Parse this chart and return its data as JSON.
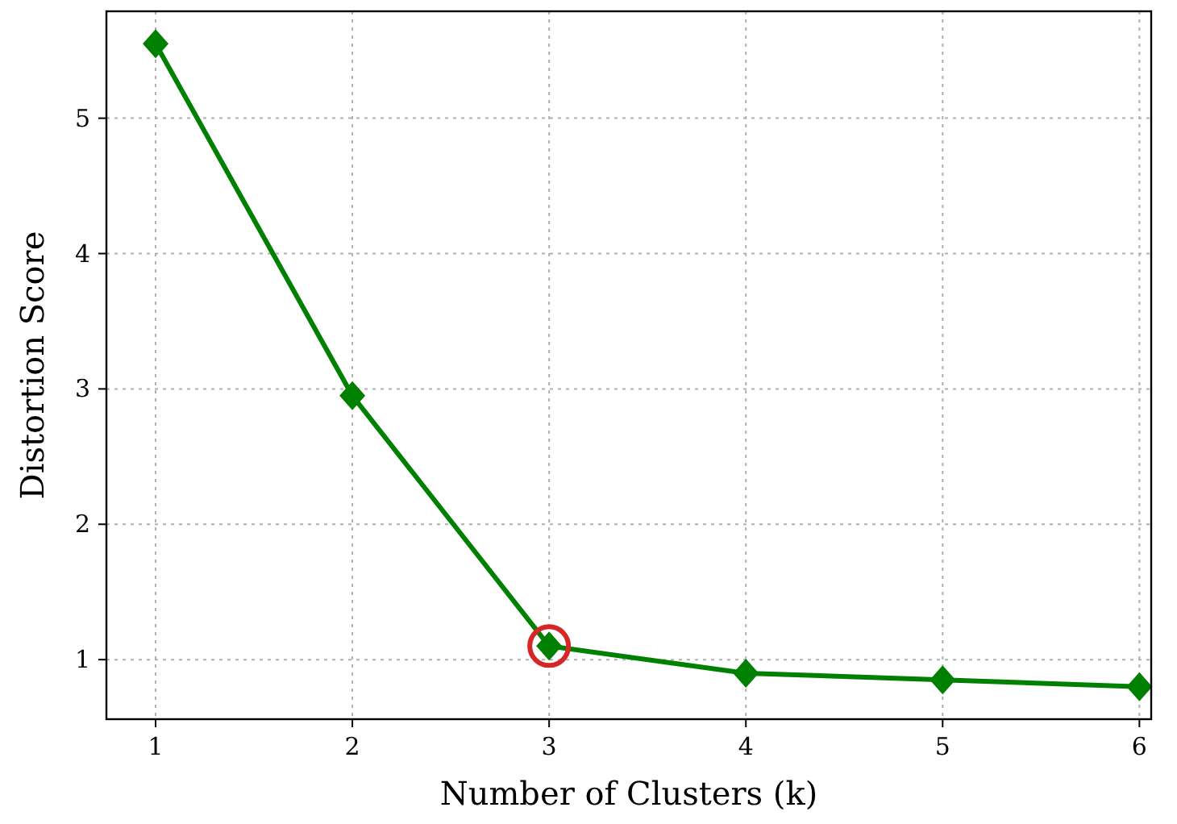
{
  "chart_data": {
    "type": "line",
    "xlabel": "Number of Clusters (k)",
    "ylabel": "Distortion Score",
    "x": [
      1,
      2,
      3,
      4,
      5,
      6
    ],
    "series": [
      {
        "color": "#008000",
        "values": [
          5.55,
          2.95,
          1.1,
          0.9,
          0.85,
          0.8
        ],
        "marker": "diamond",
        "line_style": "solid"
      },
      {
        "type": "scatter",
        "color": "#d62728",
        "values": [
          null,
          null,
          1.1,
          null,
          null,
          null
        ],
        "marker": "circle"
      }
    ],
    "xlim": [
      0.75,
      6.06
    ],
    "xticks": [
      1,
      2,
      3,
      4,
      5,
      6
    ],
    "ylim": [
      0.56,
      5.79
    ],
    "yticks": [
      1,
      2,
      3,
      4,
      5
    ],
    "grid": true
  }
}
